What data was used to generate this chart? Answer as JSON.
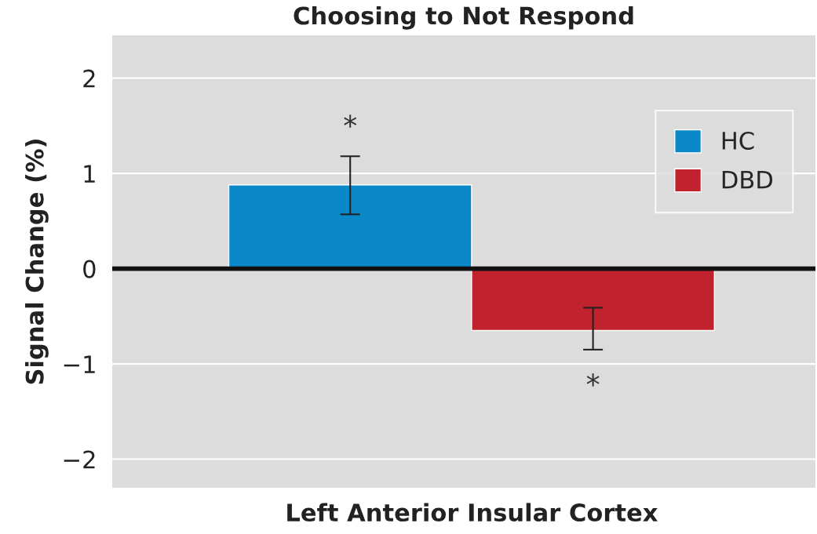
{
  "chart_data": {
    "type": "bar",
    "title": "Choosing to Not Respond",
    "ylabel": "Signal Change (%)",
    "categories": [
      "Left Anterior Insular Cortex"
    ],
    "series": [
      {
        "name": "HC",
        "color": "#0b88c8",
        "values": [
          0.88
        ],
        "errors": [
          [
            0.57,
            1.18
          ]
        ]
      },
      {
        "name": "DBD",
        "color": "#c0222e",
        "values": [
          -0.65
        ],
        "errors": [
          [
            -0.85,
            -0.41
          ]
        ]
      }
    ],
    "ylim": [
      -2.3,
      2.45
    ],
    "yticks": [
      2,
      1,
      0,
      {
        "value": -1,
        "label": "−1"
      },
      {
        "value": -2,
        "label": "−2"
      }
    ],
    "ref_lines": [
      {
        "axis": "y",
        "value": 0,
        "color": "#111111"
      }
    ],
    "annotations": [
      "*",
      "*"
    ],
    "grid": "y",
    "legend": "top right"
  }
}
